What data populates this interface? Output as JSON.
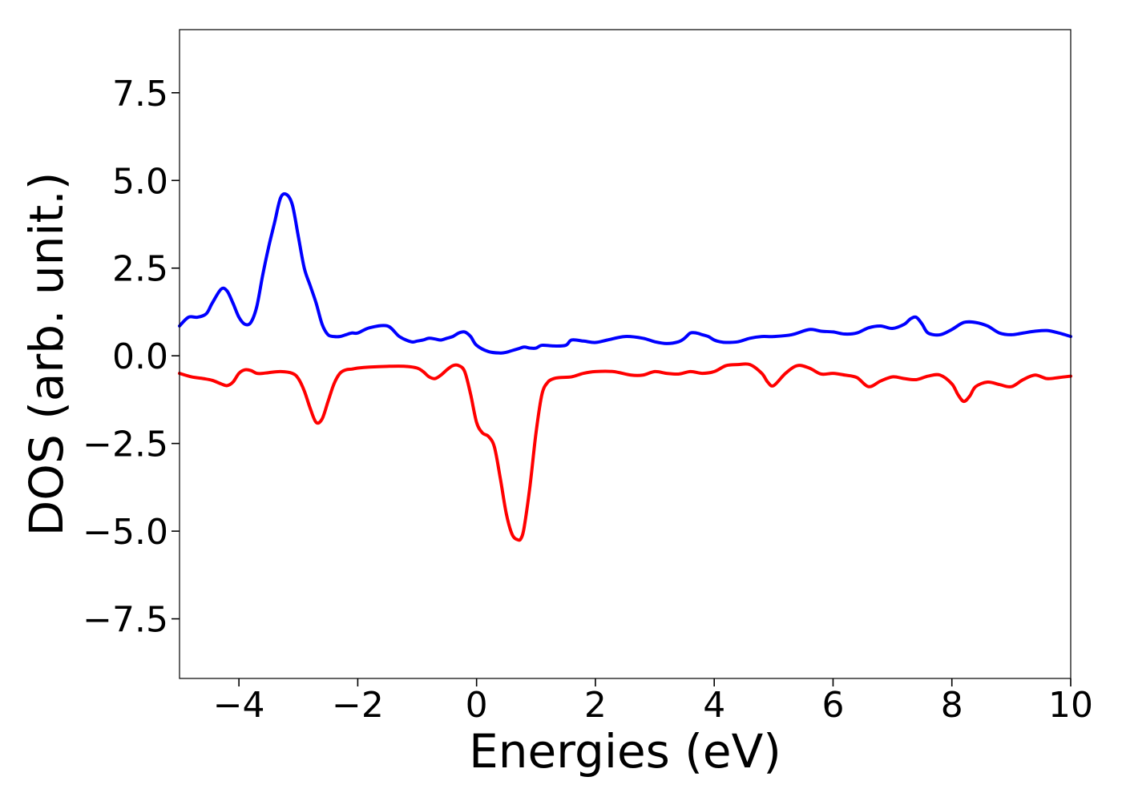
{
  "chart_data": {
    "type": "line",
    "title": "",
    "xlabel": "Energies (eV)",
    "ylabel": "DOS (arb. unit.)",
    "xlim": [
      -5,
      10
    ],
    "ylim": [
      -9.2,
      9.3
    ],
    "grid": false,
    "x_ticks": [
      {
        "value": -4,
        "label": "−4"
      },
      {
        "value": -2,
        "label": "−2"
      },
      {
        "value": 0,
        "label": "0"
      },
      {
        "value": 2,
        "label": "2"
      },
      {
        "value": 4,
        "label": "4"
      },
      {
        "value": 6,
        "label": "6"
      },
      {
        "value": 8,
        "label": "8"
      },
      {
        "value": 10,
        "label": "10"
      }
    ],
    "y_ticks": [
      {
        "value": -7.5,
        "label": "−7.5"
      },
      {
        "value": -5.0,
        "label": "−5.0"
      },
      {
        "value": -2.5,
        "label": "−2.5"
      },
      {
        "value": 0.0,
        "label": "0.0"
      },
      {
        "value": 2.5,
        "label": "2.5"
      },
      {
        "value": 5.0,
        "label": "5.0"
      },
      {
        "value": 7.5,
        "label": "7.5"
      }
    ],
    "series": [
      {
        "color": "#0000ff",
        "x": [
          -5.0,
          -4.85,
          -4.7,
          -4.55,
          -4.45,
          -4.3,
          -4.2,
          -4.1,
          -4.0,
          -3.9,
          -3.8,
          -3.7,
          -3.6,
          -3.5,
          -3.4,
          -3.3,
          -3.2,
          -3.1,
          -3.0,
          -2.9,
          -2.8,
          -2.7,
          -2.6,
          -2.5,
          -2.4,
          -2.3,
          -2.2,
          -2.1,
          -2.0,
          -1.8,
          -1.5,
          -1.3,
          -1.1,
          -1.0,
          -0.9,
          -0.8,
          -0.7,
          -0.6,
          -0.5,
          -0.4,
          -0.3,
          -0.2,
          -0.1,
          0.0,
          0.2,
          0.4,
          0.5,
          0.6,
          0.7,
          0.8,
          0.9,
          1.0,
          1.1,
          1.3,
          1.5,
          1.6,
          1.8,
          2.0,
          2.2,
          2.5,
          2.8,
          3.0,
          3.2,
          3.4,
          3.5,
          3.6,
          3.7,
          3.8,
          3.9,
          4.0,
          4.1,
          4.2,
          4.4,
          4.6,
          4.8,
          5.0,
          5.3,
          5.6,
          5.8,
          6.0,
          6.2,
          6.4,
          6.6,
          6.8,
          7.0,
          7.2,
          7.3,
          7.4,
          7.5,
          7.6,
          7.8,
          8.0,
          8.2,
          8.4,
          8.6,
          8.8,
          9.0,
          9.2,
          9.4,
          9.6,
          9.8,
          10.0
        ],
        "y": [
          0.85,
          1.1,
          1.1,
          1.2,
          1.5,
          1.9,
          1.85,
          1.5,
          1.1,
          0.9,
          0.95,
          1.4,
          2.3,
          3.1,
          3.8,
          4.5,
          4.6,
          4.3,
          3.4,
          2.5,
          2.0,
          1.5,
          0.9,
          0.6,
          0.55,
          0.55,
          0.6,
          0.65,
          0.65,
          0.8,
          0.85,
          0.55,
          0.4,
          0.42,
          0.45,
          0.5,
          0.48,
          0.45,
          0.5,
          0.55,
          0.65,
          0.68,
          0.55,
          0.3,
          0.12,
          0.08,
          0.1,
          0.15,
          0.2,
          0.25,
          0.22,
          0.22,
          0.3,
          0.28,
          0.3,
          0.45,
          0.42,
          0.38,
          0.45,
          0.55,
          0.5,
          0.4,
          0.35,
          0.4,
          0.5,
          0.65,
          0.65,
          0.6,
          0.55,
          0.45,
          0.4,
          0.38,
          0.4,
          0.5,
          0.55,
          0.55,
          0.6,
          0.75,
          0.7,
          0.68,
          0.62,
          0.65,
          0.8,
          0.85,
          0.78,
          0.9,
          1.05,
          1.1,
          0.9,
          0.65,
          0.6,
          0.75,
          0.95,
          0.95,
          0.85,
          0.65,
          0.6,
          0.65,
          0.7,
          0.72,
          0.65,
          0.55
        ]
      },
      {
        "color": "#ff0000",
        "x": [
          -5.0,
          -4.8,
          -4.6,
          -4.45,
          -4.3,
          -4.2,
          -4.1,
          -4.0,
          -3.9,
          -3.8,
          -3.7,
          -3.6,
          -3.5,
          -3.3,
          -3.1,
          -3.0,
          -2.9,
          -2.8,
          -2.7,
          -2.6,
          -2.5,
          -2.4,
          -2.3,
          -2.2,
          -2.1,
          -2.0,
          -1.8,
          -1.5,
          -1.2,
          -1.0,
          -0.9,
          -0.8,
          -0.7,
          -0.6,
          -0.5,
          -0.4,
          -0.3,
          -0.2,
          -0.1,
          0.0,
          0.1,
          0.2,
          0.3,
          0.4,
          0.5,
          0.6,
          0.7,
          0.75,
          0.8,
          0.9,
          1.0,
          1.1,
          1.2,
          1.3,
          1.4,
          1.6,
          1.8,
          2.0,
          2.3,
          2.6,
          2.8,
          3.0,
          3.2,
          3.4,
          3.6,
          3.8,
          4.0,
          4.2,
          4.4,
          4.6,
          4.8,
          4.9,
          5.0,
          5.2,
          5.4,
          5.6,
          5.8,
          6.0,
          6.2,
          6.4,
          6.6,
          6.8,
          7.0,
          7.2,
          7.4,
          7.6,
          7.8,
          8.0,
          8.1,
          8.2,
          8.3,
          8.4,
          8.6,
          8.8,
          9.0,
          9.2,
          9.4,
          9.6,
          9.8,
          10.0
        ],
        "y": [
          -0.5,
          -0.6,
          -0.65,
          -0.7,
          -0.8,
          -0.85,
          -0.75,
          -0.5,
          -0.4,
          -0.42,
          -0.5,
          -0.5,
          -0.48,
          -0.45,
          -0.5,
          -0.65,
          -1.0,
          -1.5,
          -1.9,
          -1.8,
          -1.3,
          -0.8,
          -0.5,
          -0.4,
          -0.38,
          -0.35,
          -0.32,
          -0.3,
          -0.3,
          -0.35,
          -0.45,
          -0.6,
          -0.65,
          -0.55,
          -0.4,
          -0.28,
          -0.28,
          -0.45,
          -1.1,
          -1.9,
          -2.2,
          -2.3,
          -2.6,
          -3.5,
          -4.5,
          -5.1,
          -5.25,
          -5.2,
          -4.9,
          -3.7,
          -2.2,
          -1.1,
          -0.75,
          -0.65,
          -0.62,
          -0.6,
          -0.5,
          -0.45,
          -0.45,
          -0.55,
          -0.55,
          -0.45,
          -0.5,
          -0.52,
          -0.45,
          -0.5,
          -0.45,
          -0.28,
          -0.25,
          -0.25,
          -0.5,
          -0.75,
          -0.85,
          -0.5,
          -0.28,
          -0.35,
          -0.52,
          -0.5,
          -0.55,
          -0.62,
          -0.88,
          -0.72,
          -0.6,
          -0.65,
          -0.68,
          -0.58,
          -0.55,
          -0.8,
          -1.1,
          -1.3,
          -1.15,
          -0.88,
          -0.75,
          -0.82,
          -0.88,
          -0.68,
          -0.55,
          -0.65,
          -0.62,
          -0.58
        ]
      }
    ]
  }
}
